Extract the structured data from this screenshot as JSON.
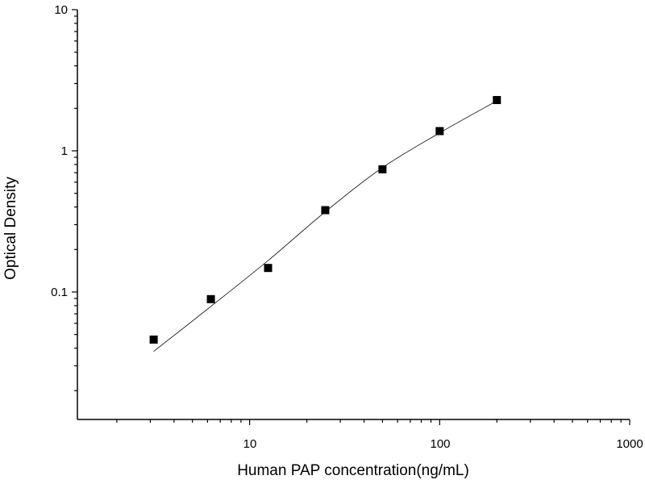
{
  "chart_data": {
    "type": "scatter",
    "title": "",
    "xlabel": "Human PAP concentration(ng/mL)",
    "ylabel": "Optical Density",
    "x_scale": "log",
    "y_scale": "log",
    "xlim": [
      1.24,
      1000
    ],
    "ylim": [
      0.0125,
      10
    ],
    "x_ticks": [
      {
        "value": 10,
        "label": "10"
      },
      {
        "value": 100,
        "label": "100"
      },
      {
        "value": 1000,
        "label": "1000"
      }
    ],
    "y_ticks": [
      {
        "value": 0.1,
        "label": "0.1"
      },
      {
        "value": 1,
        "label": "1"
      },
      {
        "value": 10,
        "label": "10"
      }
    ],
    "grid": false,
    "legend": "none",
    "marker_color": "#000000",
    "series": [
      {
        "marker": "square",
        "x": [
          3.125,
          6.25,
          12.5,
          25,
          50,
          100,
          200
        ],
        "y": [
          0.046,
          0.089,
          0.148,
          0.38,
          0.74,
          1.38,
          2.29
        ]
      }
    ],
    "fit_curve": {
      "x": [
        3.125,
        6.25,
        12.5,
        25,
        50,
        100,
        200
      ],
      "y": [
        0.038,
        0.079,
        0.167,
        0.37,
        0.76,
        1.34,
        2.26
      ]
    }
  }
}
